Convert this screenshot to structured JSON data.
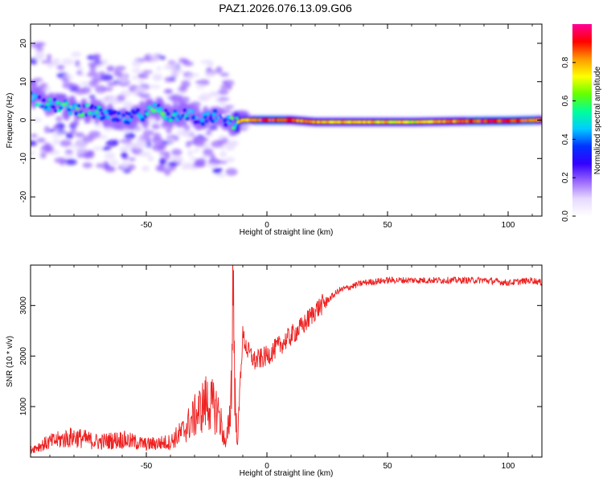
{
  "title": "PAZ1.2026.076.13.09.G06",
  "chart_data": [
    {
      "type": "heatmap",
      "panel": "top",
      "xlabel": "Height of straight line (km)",
      "ylabel": "Frequency (Hz)",
      "xlim": [
        -98,
        114
      ],
      "ylim": [
        -25,
        25
      ],
      "xticks": [
        -50,
        0,
        50,
        100
      ],
      "yticks": [
        -20,
        -10,
        0,
        10,
        20
      ],
      "colorbar": {
        "label": "Normalized spectral amplitude",
        "range": [
          0.0,
          1.0
        ],
        "ticks": [
          0.0,
          0.2,
          0.4,
          0.6,
          0.8
        ],
        "colors": [
          "#ffffff",
          "#e6d9ff",
          "#9966ff",
          "#3300ff",
          "#0033ff",
          "#00ccff",
          "#00ff99",
          "#66ff00",
          "#ffff00",
          "#ff9900",
          "#ff0000",
          "#ff0099"
        ]
      },
      "ridge": {
        "description_points_x_km": [
          -98,
          -90,
          -80,
          -70,
          -60,
          -52,
          -46,
          -40,
          -34,
          -28,
          -22,
          -18,
          -14,
          -10,
          -5,
          0,
          10,
          20,
          40,
          60,
          80,
          100,
          114
        ],
        "freq_hz": [
          6,
          4,
          3,
          2,
          0,
          1.5,
          3,
          1,
          2,
          0,
          1,
          0,
          -1,
          0,
          0,
          0,
          0,
          -0.5,
          -0.5,
          -0.5,
          -0.3,
          -0.2,
          0
        ],
        "amplitude": [
          0.5,
          0.5,
          0.6,
          0.5,
          0.5,
          0.4,
          0.6,
          0.5,
          0.5,
          0.4,
          0.5,
          0.3,
          0.6,
          0.8,
          0.9,
          0.95,
          0.9,
          0.85,
          0.8,
          0.75,
          0.9,
          0.95,
          0.9
        ]
      }
    },
    {
      "type": "line",
      "panel": "bottom",
      "xlabel": "Height of straight line (km)",
      "ylabel": "SNR (10 * v/v)",
      "xlim": [
        -98,
        114
      ],
      "ylim": [
        0,
        3800
      ],
      "xticks": [
        -50,
        0,
        50,
        100
      ],
      "yticks": [
        1000,
        2000,
        3000
      ],
      "color": "#ff0000",
      "series": [
        {
          "name": "SNR",
          "x": [
            -98,
            -90,
            -80,
            -70,
            -60,
            -50,
            -40,
            -35,
            -30,
            -25,
            -20,
            -17,
            -15,
            -14,
            -13,
            -12,
            -11,
            -10,
            -8,
            -5,
            0,
            5,
            10,
            15,
            20,
            25,
            30,
            40,
            50,
            60,
            70,
            80,
            90,
            100,
            110,
            114
          ],
          "y": [
            150,
            300,
            400,
            300,
            350,
            250,
            300,
            500,
            800,
            1100,
            900,
            200,
            1000,
            3600,
            700,
            400,
            1600,
            2400,
            2100,
            1900,
            2000,
            2200,
            2400,
            2600,
            2900,
            3100,
            3300,
            3450,
            3500,
            3500,
            3500,
            3500,
            3500,
            3450,
            3500,
            3450
          ]
        }
      ]
    }
  ]
}
